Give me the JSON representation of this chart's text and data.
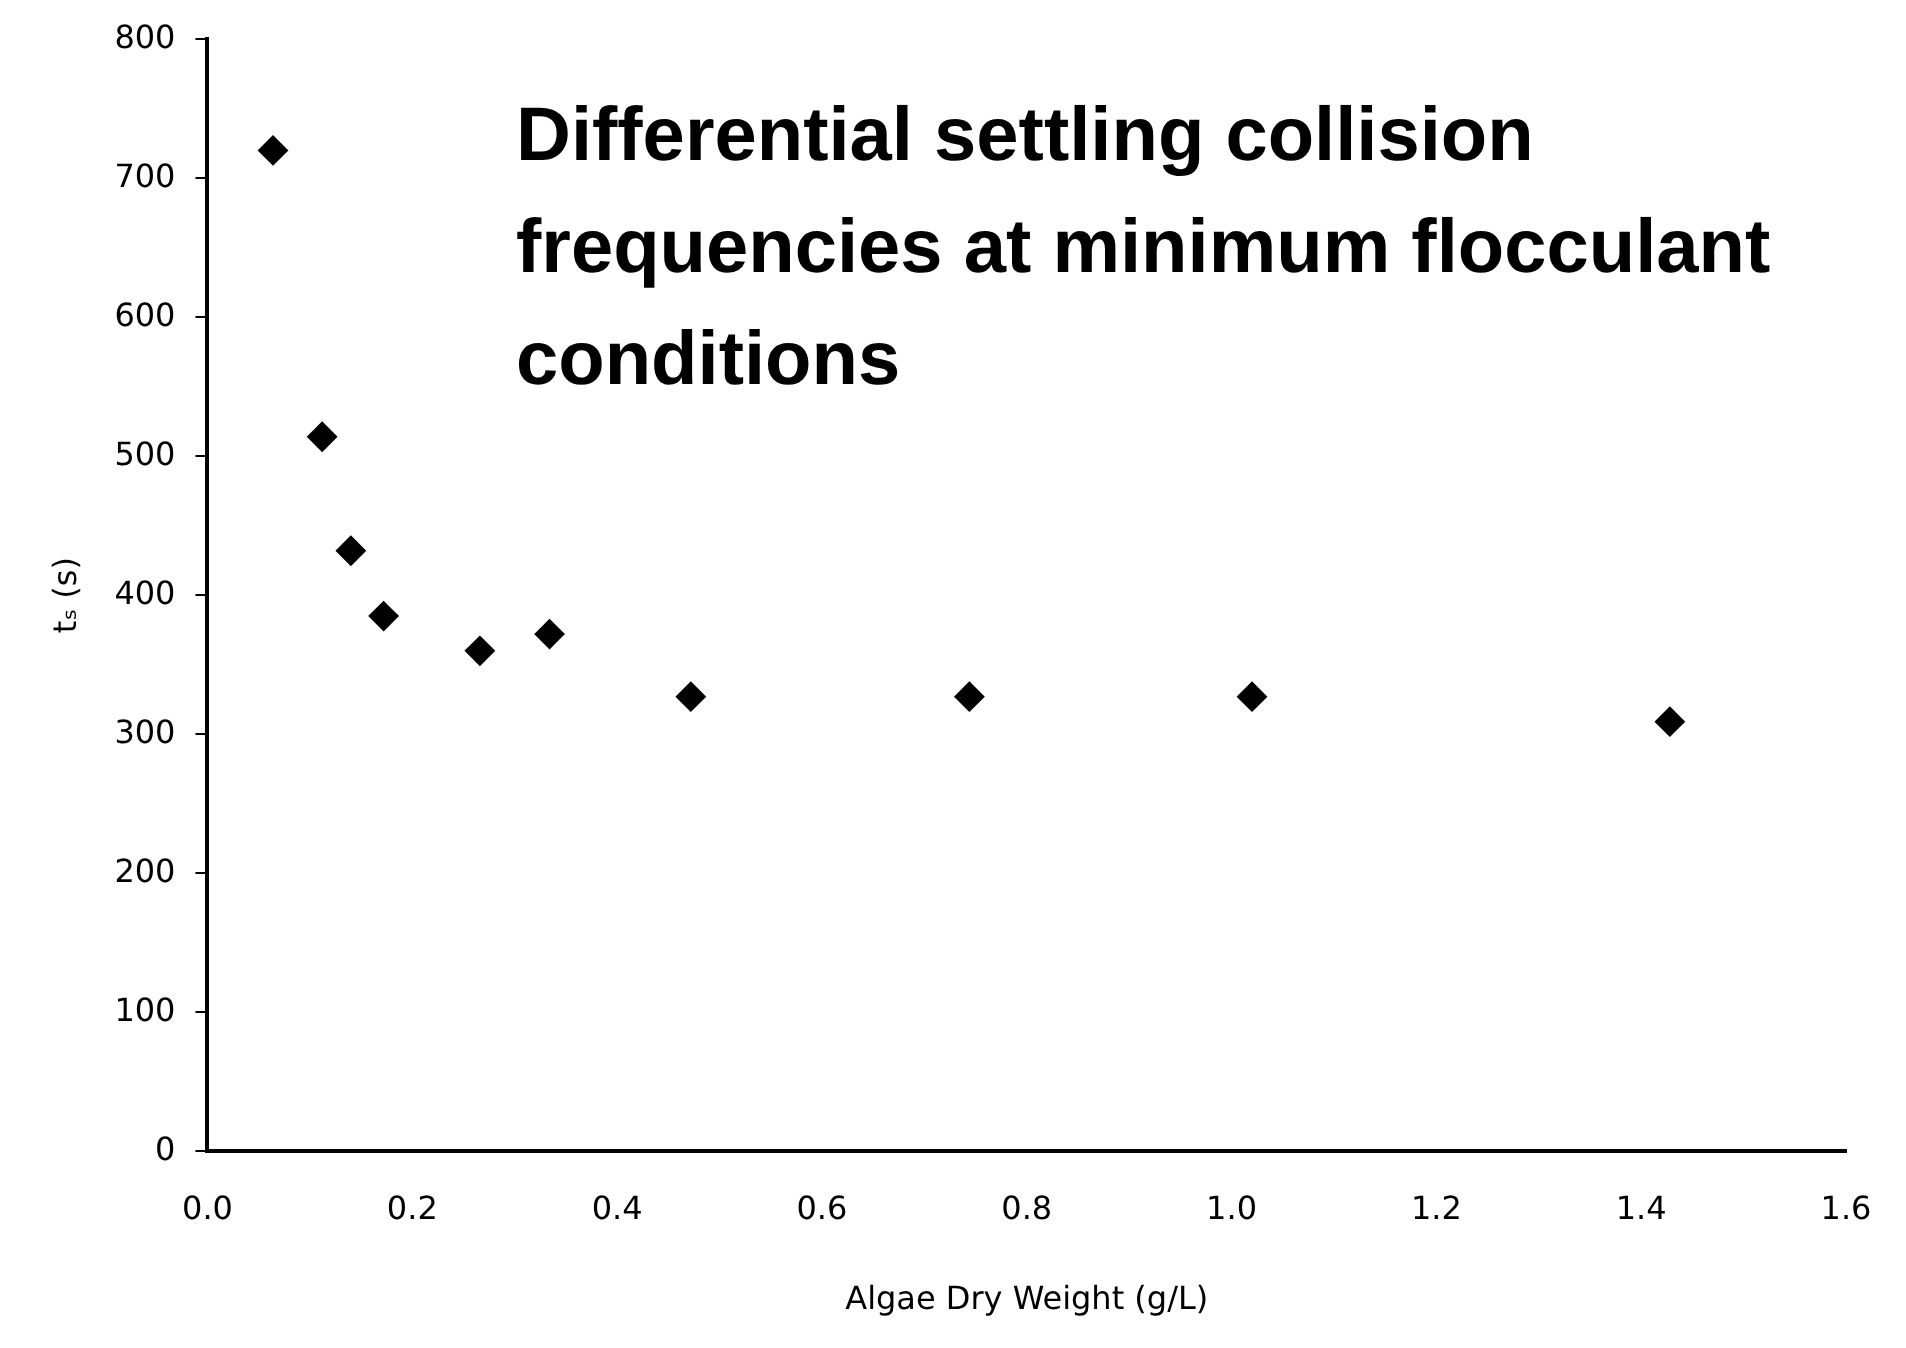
{
  "chart_data": {
    "type": "scatter",
    "title": "Differential settling collision frequencies at minimum flocculant conditions",
    "xlabel": "Algae Dry Weight (g/L)",
    "ylabel": "tₛ (s)",
    "x": [
      0.064,
      0.112,
      0.14,
      0.172,
      0.266,
      0.334,
      0.472,
      0.744,
      1.02,
      1.428
    ],
    "series": [
      {
        "color": "#000000",
        "values": [
          720,
          514,
          432,
          385,
          360,
          372,
          327,
          327,
          327,
          309
        ]
      }
    ],
    "xlim": [
      0,
      1.6
    ],
    "xticks": [
      {
        "value": 0,
        "label": "0.0"
      },
      {
        "value": 0.2,
        "label": "0.2"
      },
      {
        "value": 0.4,
        "label": "0.4"
      },
      {
        "value": 0.6,
        "label": "0.6"
      },
      {
        "value": 0.8,
        "label": "0.8"
      },
      {
        "value": 1,
        "label": "1.0"
      },
      {
        "value": 1.2,
        "label": "1.2"
      },
      {
        "value": 1.4,
        "label": "1.4"
      },
      {
        "value": 1.6,
        "label": "1.6"
      }
    ],
    "ylim": [
      0,
      800
    ],
    "yticks": [
      0,
      100,
      200,
      300,
      400,
      500,
      600,
      700,
      800
    ],
    "grid": false,
    "legend": false,
    "marker": "diamond"
  }
}
